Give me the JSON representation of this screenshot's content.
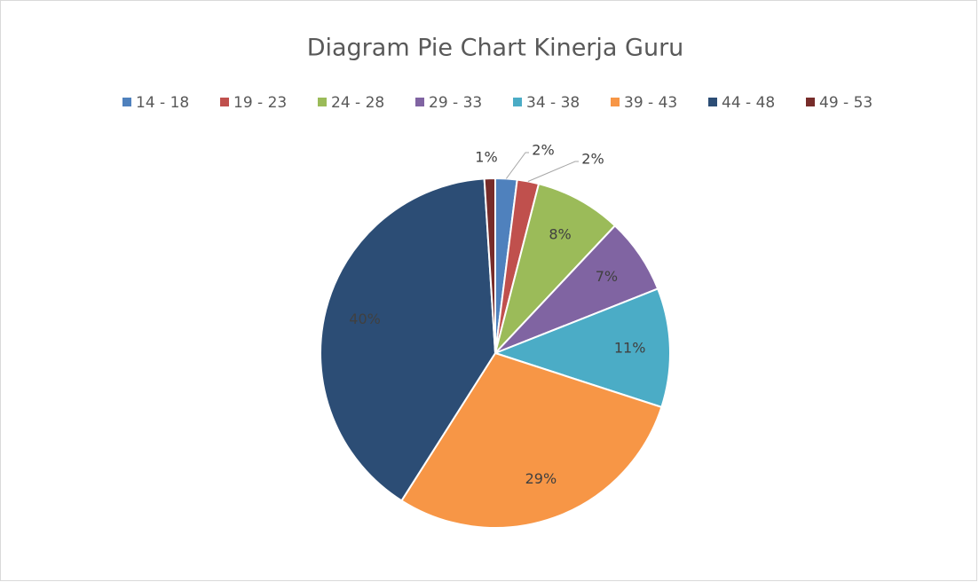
{
  "chart_data": {
    "type": "pie",
    "title": "Diagram Pie Chart Kinerja Guru",
    "categories": [
      "14 - 18",
      "19 - 23",
      "24 - 28",
      "29 - 33",
      "34 - 38",
      "39 - 43",
      "44 - 48",
      "49 - 53"
    ],
    "values": [
      2,
      2,
      8,
      7,
      11,
      29,
      40,
      1
    ],
    "value_labels": [
      "2%",
      "2%",
      "8%",
      "7%",
      "11%",
      "29%",
      "40%",
      "1%"
    ],
    "colors": [
      "#4f81bd",
      "#c0504d",
      "#9bbb59",
      "#8064a2",
      "#4bacc6",
      "#f79646",
      "#2c4d75",
      "#772c2a"
    ],
    "legend": "top"
  }
}
